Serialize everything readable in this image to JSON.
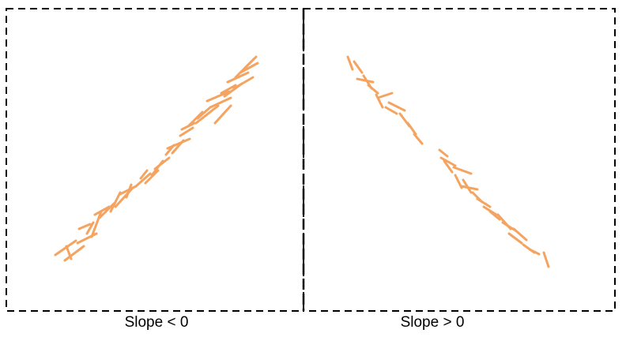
{
  "panels": [
    {
      "label": "Slope < 0"
    },
    {
      "label": "Slope > 0"
    }
  ],
  "colors": {
    "stroke": "#F4A460",
    "frame": "#000000"
  }
}
